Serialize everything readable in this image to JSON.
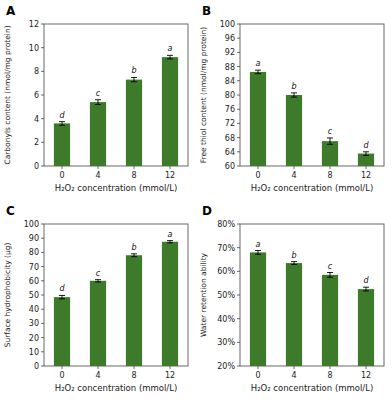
{
  "chart_data": [
    {
      "type": "bar",
      "title": "A",
      "categories": [
        "0",
        "4",
        "8",
        "12"
      ],
      "values": [
        3.6,
        5.4,
        7.3,
        9.2
      ],
      "errors": [
        0.15,
        0.2,
        0.18,
        0.15
      ],
      "annotations": [
        "d",
        "c",
        "b",
        "a"
      ],
      "x_label": "H₂O₂ concentration (mmol/L)",
      "y_label": "Carbonyls content (nmol/mg protein)",
      "color": "#3d7a2a",
      "ylim": [
        0,
        12
      ],
      "yticks": [
        0,
        2,
        4,
        6,
        8,
        10,
        12
      ],
      "grid": false
    },
    {
      "type": "bar",
      "title": "B",
      "categories": [
        "0",
        "4",
        "8",
        "12"
      ],
      "values": [
        86.5,
        80.0,
        67.0,
        63.5
      ],
      "errors": [
        0.5,
        0.6,
        0.9,
        0.5
      ],
      "annotations": [
        "a",
        "b",
        "c",
        "d"
      ],
      "x_label": "H₂O₂ concentration (mmol/L)",
      "y_label": "Free thiol content (nmol/mg protein)",
      "color": "#3d7a2a",
      "ylim": [
        60,
        100
      ],
      "yticks": [
        60,
        64,
        68,
        72,
        76,
        80,
        84,
        88,
        92,
        96,
        100
      ],
      "grid": false
    },
    {
      "type": "bar",
      "title": "C",
      "categories": [
        "0",
        "4",
        "8",
        "12"
      ],
      "values": [
        48.5,
        60.0,
        78.0,
        87.5
      ],
      "errors": [
        1.2,
        0.8,
        1.0,
        0.8
      ],
      "annotations": [
        "d",
        "c",
        "b",
        "a"
      ],
      "x_label": "H₂O₂ concentration (mmol/L)",
      "y_label": "Surface hydrophobicity (μg)",
      "color": "#3d7a2a",
      "ylim": [
        0,
        100
      ],
      "yticks": [
        0,
        10,
        20,
        30,
        40,
        50,
        60,
        70,
        80,
        90,
        100
      ],
      "grid": false
    },
    {
      "type": "bar",
      "title": "D",
      "categories": [
        "0",
        "4",
        "8",
        "12"
      ],
      "values": [
        68.0,
        63.5,
        58.5,
        52.5
      ],
      "errors": [
        0.8,
        0.6,
        1.0,
        0.8
      ],
      "annotations": [
        "a",
        "b",
        "c",
        "d"
      ],
      "x_label": "H₂O₂ concentration (mmol/L)",
      "y_label": "Water retention ability",
      "color": "#3d7a2a",
      "ylim": [
        20,
        80
      ],
      "yticks": [
        {
          "value": 20,
          "label": "20%"
        },
        {
          "value": 30,
          "label": "30%"
        },
        {
          "value": 40,
          "label": "40%"
        },
        {
          "value": 50,
          "label": "50%"
        },
        {
          "value": 60,
          "label": "60%"
        },
        {
          "value": 70,
          "label": "70%"
        },
        {
          "value": 80,
          "label": "80%"
        }
      ],
      "grid": false
    }
  ]
}
